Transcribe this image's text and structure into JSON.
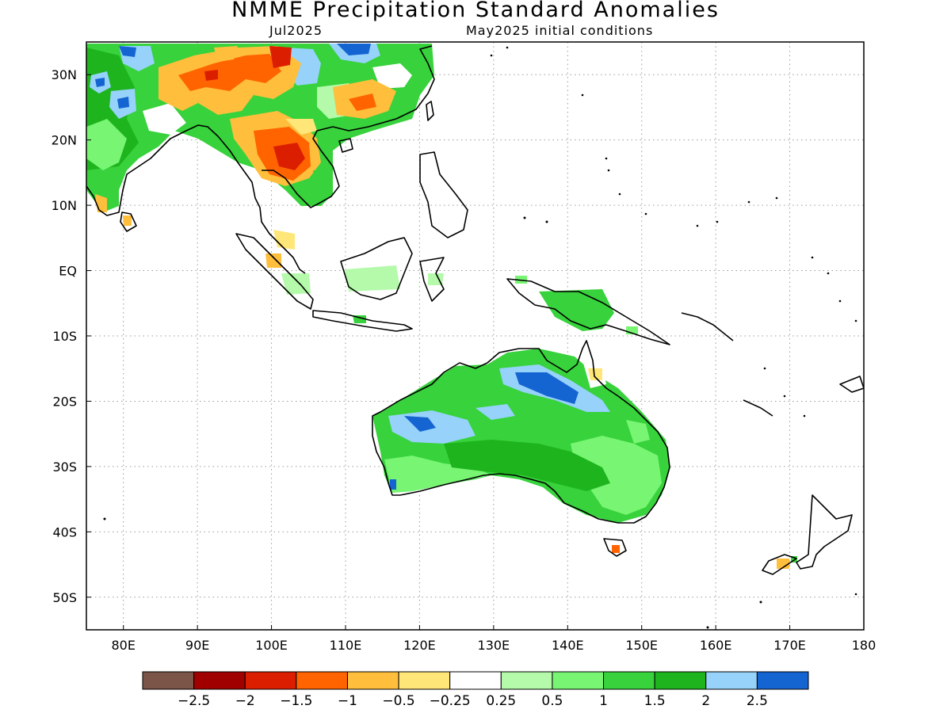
{
  "title": "NMME Precipitation Standard Anomalies",
  "subtitle_left": "Jul2025",
  "subtitle_right": "May2025 initial conditions",
  "map": {
    "lon_range": [
      75,
      180
    ],
    "lat_range": [
      -55,
      35
    ],
    "lat_ticks": [
      {
        "value": 30,
        "label": "30N"
      },
      {
        "value": 20,
        "label": "20N"
      },
      {
        "value": 10,
        "label": "10N"
      },
      {
        "value": 0,
        "label": "EQ"
      },
      {
        "value": -10,
        "label": "10S"
      },
      {
        "value": -20,
        "label": "20S"
      },
      {
        "value": -30,
        "label": "30S"
      },
      {
        "value": -40,
        "label": "40S"
      },
      {
        "value": -50,
        "label": "50S"
      }
    ],
    "lon_ticks": [
      {
        "value": 80,
        "label": "80E"
      },
      {
        "value": 90,
        "label": "90E"
      },
      {
        "value": 100,
        "label": "100E"
      },
      {
        "value": 110,
        "label": "110E"
      },
      {
        "value": 120,
        "label": "120E"
      },
      {
        "value": 130,
        "label": "130E"
      },
      {
        "value": 140,
        "label": "140E"
      },
      {
        "value": 150,
        "label": "150E"
      },
      {
        "value": 160,
        "label": "160E"
      },
      {
        "value": 170,
        "label": "170E"
      },
      {
        "value": 180,
        "label": "180"
      }
    ],
    "gridlines": "dotted"
  },
  "colorbar": {
    "colors": [
      "#7a5548",
      "#a00000",
      "#dc1e00",
      "#ff6400",
      "#ffbe3c",
      "#ffe678",
      "#ffffff",
      "#b4faaa",
      "#78f573",
      "#37d23c",
      "#1eb41e",
      "#96d2fa",
      "#1464d2"
    ],
    "labels": [
      "−2.5",
      "−2",
      "−1.5",
      "−1",
      "−0.5",
      "−0.25",
      "0.25",
      "0.5",
      "1",
      "1.5",
      "2",
      "2.5"
    ]
  }
}
